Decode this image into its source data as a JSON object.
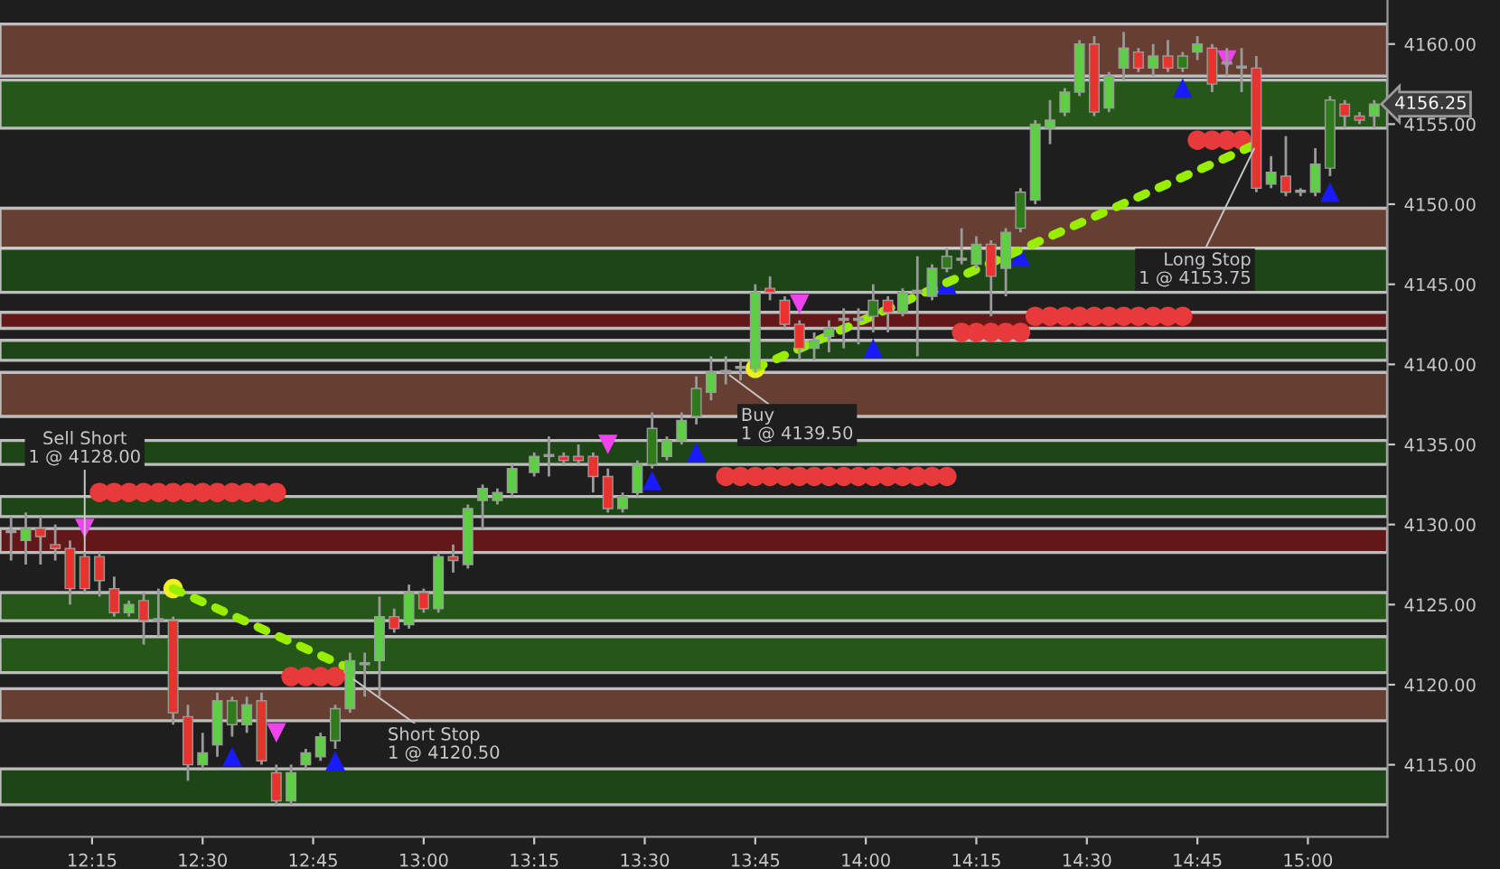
{
  "chart_data": {
    "type": "candlestick",
    "x": [
      12.0667,
      12.1,
      12.1333,
      12.1667,
      12.2,
      12.2333,
      12.2667,
      12.3,
      12.3333,
      12.3667,
      12.4,
      12.4333,
      12.4667,
      12.5,
      12.5333,
      12.5667,
      12.6,
      12.6333,
      12.6667,
      12.7,
      12.7333,
      12.7667,
      12.8,
      12.8333,
      12.8667,
      12.9,
      12.9333,
      12.9667,
      13.0,
      13.0333,
      13.0667,
      13.1,
      13.1333,
      13.1667,
      13.2,
      13.25,
      13.2833,
      13.3167,
      13.35,
      13.3833,
      13.4167,
      13.45,
      13.4833,
      13.5167,
      13.55,
      13.5833,
      13.6167,
      13.65,
      13.6833,
      13.7167,
      13.75,
      13.7833,
      13.8167,
      13.85,
      13.8833,
      13.9167,
      13.95,
      13.9833,
      14.0167,
      14.05,
      14.0833,
      14.1167,
      14.15,
      14.1833,
      14.2167,
      14.25,
      14.2833,
      14.3167,
      14.35,
      14.3833,
      14.4167,
      14.45,
      14.4833,
      14.5167,
      14.55,
      14.5833,
      14.6167,
      14.65,
      14.6833,
      14.7167,
      14.75,
      14.7833,
      14.8167,
      14.85,
      14.8833,
      14.9167,
      14.95,
      14.9833,
      15.0167,
      15.05,
      15.0833,
      15.1167,
      15.15
    ],
    "ohlc": [
      [
        4129.5,
        4130.5,
        4127.75,
        4129.5
      ],
      [
        4129,
        4130.75,
        4127.5,
        4129.75
      ],
      [
        4129.75,
        4130.5,
        4127.5,
        4129.25
      ],
      [
        4128.75,
        4130,
        4127.75,
        4128.5
      ],
      [
        4128.5,
        4129,
        4125,
        4126
      ],
      [
        4128,
        4128.25,
        4125.75,
        4126
      ],
      [
        4128,
        4128.25,
        4125.5,
        4126.5
      ],
      [
        4126,
        4126.75,
        4124.25,
        4124.5
      ],
      [
        4124.5,
        4125.25,
        4124.25,
        4125
      ],
      [
        4125.25,
        4125.75,
        4122.5,
        4124
      ],
      [
        4124,
        4126,
        4123,
        4124
      ],
      [
        4124,
        4124.25,
        4117.5,
        4118.25
      ],
      [
        4118,
        4118.75,
        4114,
        4115
      ],
      [
        4115,
        4117,
        4114.75,
        4115.75
      ],
      [
        4116.25,
        4119.5,
        4115.5,
        4119
      ],
      [
        4117.5,
        4119.25,
        4116.75,
        4119
      ],
      [
        4117.5,
        4119.25,
        4117,
        4118.75
      ],
      [
        4119,
        4119.5,
        4115,
        4115.25
      ],
      [
        4114.5,
        4115,
        4112.5,
        4112.75
      ],
      [
        4112.75,
        4115,
        4112.5,
        4114.5
      ],
      [
        4115,
        4116,
        4114.75,
        4115.75
      ],
      [
        4115.5,
        4117,
        4115.25,
        4116.75
      ],
      [
        4116.5,
        4118.75,
        4116,
        4118.5
      ],
      [
        4118.5,
        4122,
        4118.25,
        4121.5
      ],
      [
        4121.25,
        4122,
        4119.25,
        4121.25
      ],
      [
        4121.5,
        4125.5,
        4119.25,
        4124.25
      ],
      [
        4124.25,
        4124.75,
        4123.25,
        4123.5
      ],
      [
        4123.75,
        4126.25,
        4123.5,
        4125.75
      ],
      [
        4125.75,
        4126,
        4124.5,
        4124.75
      ],
      [
        4124.75,
        4128.25,
        4124.5,
        4128
      ],
      [
        4128,
        4128.75,
        4127,
        4127.75
      ],
      [
        4127.5,
        4131.25,
        4127.25,
        4131
      ],
      [
        4131.5,
        4132.5,
        4129.75,
        4132.25
      ],
      [
        4131.5,
        4132.25,
        4131.25,
        4132
      ],
      [
        4132,
        4133.75,
        4131.75,
        4133.5
      ],
      [
        4133.25,
        4134.5,
        4133,
        4134.25
      ],
      [
        4134.25,
        4135.5,
        4133,
        4134.25
      ],
      [
        4134.25,
        4134.5,
        4133.75,
        4134
      ],
      [
        4134.25,
        4135,
        4133.75,
        4134
      ],
      [
        4134.25,
        4134.5,
        4132,
        4133
      ],
      [
        4133,
        4133.5,
        4130.75,
        4131
      ],
      [
        4131,
        4132,
        4130.75,
        4131.75
      ],
      [
        4132,
        4134,
        4131.75,
        4133.75
      ],
      [
        4133.75,
        4137,
        4133.5,
        4136
      ],
      [
        4134.25,
        4135.5,
        4134,
        4135.25
      ],
      [
        4135.25,
        4137,
        4135,
        4136.5
      ],
      [
        4136.75,
        4139.25,
        4136.25,
        4138.5
      ],
      [
        4138.25,
        4140.5,
        4137.75,
        4139.5
      ],
      [
        4139.5,
        4140.5,
        4138.75,
        4139.5
      ],
      [
        4139.75,
        4140.25,
        4139,
        4139.75
      ],
      [
        4139.75,
        4145,
        4139.5,
        4144.5
      ],
      [
        4144.75,
        4145.5,
        4144,
        4144.5
      ],
      [
        4144,
        4144.25,
        4142.25,
        4142.5
      ],
      [
        4142.5,
        4142.75,
        4140.25,
        4141
      ],
      [
        4141,
        4142,
        4140.25,
        4141.5
      ],
      [
        4141.75,
        4142.75,
        4140.75,
        4142.25
      ],
      [
        4142.75,
        4143.5,
        4141,
        4142.75
      ],
      [
        4142.75,
        4143.5,
        4141.25,
        4142.75
      ],
      [
        4143,
        4145,
        4142,
        4144
      ],
      [
        4144,
        4144.25,
        4142,
        4143.25
      ],
      [
        4143.25,
        4144.75,
        4143,
        4144.5
      ],
      [
        4144.5,
        4146.75,
        4140.5,
        4144.5
      ],
      [
        4144.25,
        4146.25,
        4144,
        4146
      ],
      [
        4146,
        4147.25,
        4145.75,
        4146.75
      ],
      [
        4146.5,
        4148.5,
        4146.25,
        4146.5
      ],
      [
        4146.25,
        4148,
        4146,
        4147.5
      ],
      [
        4147.5,
        4147.75,
        4143,
        4145.5
      ],
      [
        4146,
        4148.5,
        4144.25,
        4148.25
      ],
      [
        4148.5,
        4151,
        4148.25,
        4150.75
      ],
      [
        4150.25,
        4155.25,
        4150,
        4155
      ],
      [
        4154.75,
        4156.5,
        4153.75,
        4155.25
      ],
      [
        4155.75,
        4157.25,
        4155.5,
        4157
      ],
      [
        4157,
        4160.25,
        4156.75,
        4160
      ],
      [
        4160,
        4160.5,
        4155.5,
        4155.75
      ],
      [
        4156,
        4158.25,
        4155.75,
        4158
      ],
      [
        4158.5,
        4160.75,
        4157.75,
        4159.75
      ],
      [
        4159.5,
        4159.75,
        4158.25,
        4158.5
      ],
      [
        4158.5,
        4160,
        4158,
        4159.25
      ],
      [
        4159.25,
        4160.25,
        4158.25,
        4158.5
      ],
      [
        4158.5,
        4159.5,
        4158.25,
        4159.25
      ],
      [
        4159.5,
        4160.5,
        4159,
        4160
      ],
      [
        4159.75,
        4160,
        4157,
        4157.5
      ],
      [
        4158.75,
        4159.75,
        4158,
        4158.75
      ],
      [
        4158.5,
        4159.75,
        4157,
        4158.5
      ],
      [
        4158.5,
        4159.25,
        4150.75,
        4151
      ],
      [
        4151.25,
        4153,
        4151,
        4152
      ],
      [
        4151.75,
        4154.25,
        4150.5,
        4150.75
      ],
      [
        4150.75,
        4151,
        4150.5,
        4150.75
      ],
      [
        4150.75,
        4153.5,
        4150.5,
        4152.5
      ],
      [
        4152.25,
        4156.75,
        4151.75,
        4156.5
      ],
      [
        4156.25,
        4156.5,
        4154.75,
        4155.5
      ],
      [
        4155.5,
        4155.75,
        4155,
        4155.25
      ],
      [
        4155.5,
        4156.5,
        4154.75,
        4156.25
      ]
    ],
    "colors": [
      "#a0a0a0",
      "#5ecf45",
      "#e8322e",
      "#e8322e",
      "#e8322e",
      "#e8322e",
      "#e8322e",
      "#e8322e",
      "#5ecf45",
      "#e8322e",
      "#a0a0a0",
      "#e8322e",
      "#e8322e",
      "#5ecf45",
      "#5ecf45",
      "#2f7a1a",
      "#5ecf45",
      "#e8322e",
      "#e8322e",
      "#5ecf45",
      "#5ecf45",
      "#5ecf45",
      "#2f7a1a",
      "#5ecf45",
      "#a0a0a0",
      "#5ecf45",
      "#e8322e",
      "#5ecf45",
      "#e8322e",
      "#5ecf45",
      "#e8322e",
      "#5ecf45",
      "#5ecf45",
      "#5ecf45",
      "#5ecf45",
      "#5ecf45",
      "#a0a0a0",
      "#e8322e",
      "#e8322e",
      "#e8322e",
      "#e8322e",
      "#5ecf45",
      "#5ecf45",
      "#2f7a1a",
      "#5ecf45",
      "#5ecf45",
      "#2f7a1a",
      "#5ecf45",
      "#a0a0a0",
      "#a0a0a0",
      "#5ecf45",
      "#e8322e",
      "#e8322e",
      "#e8322e",
      "#5ecf45",
      "#5ecf45",
      "#a0a0a0",
      "#a0a0a0",
      "#2f7a1a",
      "#e8322e",
      "#5ecf45",
      "#a0a0a0",
      "#5ecf45",
      "#2f7a1a",
      "#a0a0a0",
      "#5ecf45",
      "#e8322e",
      "#5ecf45",
      "#2f7a1a",
      "#5ecf45",
      "#5ecf45",
      "#5ecf45",
      "#5ecf45",
      "#e8322e",
      "#5ecf45",
      "#5ecf45",
      "#e8322e",
      "#5ecf45",
      "#e8322e",
      "#2f7a1a",
      "#5ecf45",
      "#e8322e",
      "#a0a0a0",
      "#a0a0a0",
      "#e8322e",
      "#5ecf45",
      "#e8322e",
      "#a0a0a0",
      "#5ecf45",
      "#2f7a1a",
      "#e8322e",
      "#e8322e",
      "#5ecf45"
    ],
    "series": [
      {
        "type": "line",
        "color": "#99ee00",
        "line_style": "dotted",
        "marker": "none",
        "x": [
          12.4333,
          12.8333
        ],
        "values": [
          4126,
          4121
        ]
      },
      {
        "type": "line",
        "color": "#99ee00",
        "line_style": "dotted",
        "marker": "none",
        "x": [
          13.75,
          14.8833
        ],
        "values": [
          4139.75,
          4153.75
        ]
      },
      {
        "type": "scatter",
        "color": "#e83a3a",
        "marker": "circle",
        "x": [
          12.2667,
          12.3,
          12.3333,
          12.3667,
          12.4,
          12.4333,
          12.4667,
          12.5,
          12.5333,
          12.5667,
          12.6,
          12.6333,
          12.6667,
          12.7,
          12.7333,
          12.7667,
          12.8,
          13.6833,
          13.7167,
          13.75,
          13.7833,
          13.8167,
          13.85,
          13.8833,
          13.9167,
          13.95,
          13.9833,
          14.0167,
          14.05,
          14.0833,
          14.1167,
          14.15,
          14.1833,
          14.2167,
          14.25,
          14.2833,
          14.3167,
          14.35,
          14.3833,
          14.4167,
          14.45,
          14.4833,
          14.5167,
          14.55,
          14.5833,
          14.6167,
          14.65,
          14.6833,
          14.7167,
          14.75,
          14.7833,
          14.8167,
          14.85
        ],
        "values": [
          4132,
          4132,
          4132,
          4132,
          4132,
          4132,
          4132,
          4132,
          4132,
          4132,
          4132,
          4132,
          4132,
          4120.5,
          4120.5,
          4120.5,
          4120.5,
          4133,
          4133,
          4133,
          4133,
          4133,
          4133,
          4133,
          4133,
          4133,
          4133,
          4133,
          4133,
          4133,
          4133,
          4133,
          4133,
          4142,
          4142,
          4142,
          4142,
          4142,
          4143,
          4143,
          4143,
          4143,
          4143,
          4143,
          4143,
          4143,
          4143,
          4143,
          4143,
          4154,
          4154,
          4154,
          4154
        ]
      },
      {
        "type": "scatter",
        "color": "#1a1aff",
        "marker": "triangle",
        "x": [
          12.5667,
          12.8,
          13.5167,
          13.6167,
          14.0167,
          14.1833,
          14.35,
          14.7167,
          15.05
        ],
        "values": [
          4115.5,
          4115.25,
          4132.75,
          4134.5,
          4141,
          4145,
          4146.75,
          4157.25,
          4150.75
        ]
      },
      {
        "type": "scatter",
        "color": "#ee44ee",
        "marker": "triangle_down",
        "x": [
          12.2333,
          12.6667,
          13.4167,
          13.85,
          14.8167
        ],
        "values": [
          4129.75,
          4117,
          4135,
          4143.75,
          4159
        ]
      },
      {
        "type": "scatter",
        "color": "#f0f020",
        "marker": "circle",
        "x": [
          12.4333,
          13.75
        ],
        "values": [
          4126,
          4139.75
        ]
      }
    ],
    "bands": [
      {
        "axis": "y",
        "from": 4158,
        "to": 4161.25,
        "color": "#6e4235"
      },
      {
        "axis": "y",
        "from": 4154.75,
        "to": 4157.75,
        "color": "#255e18"
      },
      {
        "axis": "y",
        "from": 4147.25,
        "to": 4149.75,
        "color": "#6e4235"
      },
      {
        "axis": "y",
        "from": 4144.5,
        "to": 4147.25,
        "color": "#1d4a16"
      },
      {
        "axis": "y",
        "from": 4142.25,
        "to": 4143.25,
        "color": "#6a1818"
      },
      {
        "axis": "y",
        "from": 4140.25,
        "to": 4141.5,
        "color": "#1d4a16"
      },
      {
        "axis": "y",
        "from": 4136.75,
        "to": 4139.5,
        "color": "#6e4235"
      },
      {
        "axis": "y",
        "from": 4133.75,
        "to": 4135.25,
        "color": "#1d4a16"
      },
      {
        "axis": "y",
        "from": 4130.5,
        "to": 4131.75,
        "color": "#1d4a16"
      },
      {
        "axis": "y",
        "from": 4128.25,
        "to": 4129.75,
        "color": "#6a1818"
      },
      {
        "axis": "y",
        "from": 4124,
        "to": 4125.75,
        "color": "#255e18"
      },
      {
        "axis": "y",
        "from": 4120.75,
        "to": 4123,
        "color": "#255e18"
      },
      {
        "axis": "y",
        "from": 4117.75,
        "to": 4119.75,
        "color": "#6e4235"
      },
      {
        "axis": "y",
        "from": 4112.5,
        "to": 4114.75,
        "color": "#1d4a16"
      }
    ],
    "annotations": [
      {
        "text": "Sell Short\n1 @ 4128.00",
        "x": 12.2333,
        "y": 4128
      },
      {
        "text": "Short Stop\n1 @ 4120.50",
        "x": 12.8333,
        "y": 4120.5
      },
      {
        "text": "Buy\n1 @ 4139.50",
        "x": 13.6833,
        "y": 4139.5
      },
      {
        "text": "Long Stop\n1 @ 4153.75",
        "x": 14.8833,
        "y": 4153.75
      },
      {
        "text": "4156.25",
        "x": 15.15,
        "y": 4156.25
      }
    ],
    "xlim": [
      12.0417,
      15.18
    ],
    "ylim": [
      4110.5,
      4162.75
    ],
    "xticks": [
      {
        "value": 12.25,
        "label": "12:15"
      },
      {
        "value": 12.5,
        "label": "12:30"
      },
      {
        "value": 12.75,
        "label": "12:45"
      },
      {
        "value": 13.0,
        "label": "13:00"
      },
      {
        "value": 13.25,
        "label": "13:15"
      },
      {
        "value": 13.5,
        "label": "13:30"
      },
      {
        "value": 13.75,
        "label": "13:45"
      },
      {
        "value": 14.0,
        "label": "14:00"
      },
      {
        "value": 14.25,
        "label": "14:15"
      },
      {
        "value": 14.5,
        "label": "14:30"
      },
      {
        "value": 14.75,
        "label": "14:45"
      },
      {
        "value": 15.0,
        "label": "15:00"
      }
    ],
    "yticks": [
      {
        "value": 4115,
        "label": "4115.00"
      },
      {
        "value": 4120,
        "label": "4120.00"
      },
      {
        "value": 4125,
        "label": "4125.00"
      },
      {
        "value": 4130,
        "label": "4130.00"
      },
      {
        "value": 4135,
        "label": "4135.00"
      },
      {
        "value": 4140,
        "label": "4140.00"
      },
      {
        "value": 4145,
        "label": "4145.00"
      },
      {
        "value": 4150,
        "label": "4150.00"
      },
      {
        "value": 4155,
        "label": "4155.00"
      },
      {
        "value": 4160,
        "label": "4160.00"
      }
    ],
    "grid": false,
    "legend": false
  }
}
